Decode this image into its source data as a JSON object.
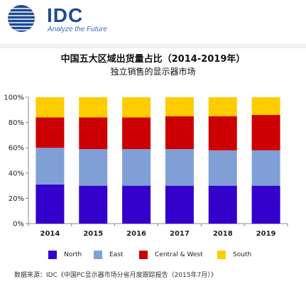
{
  "logo": {
    "text": "IDC",
    "tagline": "Analyze the Future"
  },
  "title": "中国五大区域出货量占比（2014-2019年）",
  "subtitle": "独立销售的显示器市场",
  "source": "数据来源：IDC《中国PC显示器市场分省月度跟踪报告（2015年7月）》",
  "colors": {
    "North": "#3300cc",
    "East": "#7f9fd6",
    "Central & West": "#cc0000",
    "South": "#ffcc00",
    "axis": "#888888",
    "grid": "#dddddd"
  },
  "chart_data": {
    "type": "bar",
    "stacked": true,
    "categories": [
      "2014",
      "2015",
      "2016",
      "2017",
      "2018",
      "2019"
    ],
    "series": [
      {
        "name": "North",
        "values": [
          31,
          30,
          30,
          30,
          30,
          30
        ]
      },
      {
        "name": "East",
        "values": [
          29,
          29,
          29,
          29,
          28,
          28
        ]
      },
      {
        "name": "Central & West",
        "values": [
          24,
          25,
          25,
          26,
          27,
          28
        ]
      },
      {
        "name": "South",
        "values": [
          16,
          16,
          16,
          15,
          15,
          14
        ]
      }
    ],
    "yticks": [
      "0%",
      "20%",
      "40%",
      "60%",
      "80%",
      "100%"
    ],
    "ylim": [
      0,
      100
    ],
    "legend_position": "bottom",
    "grid": false
  }
}
